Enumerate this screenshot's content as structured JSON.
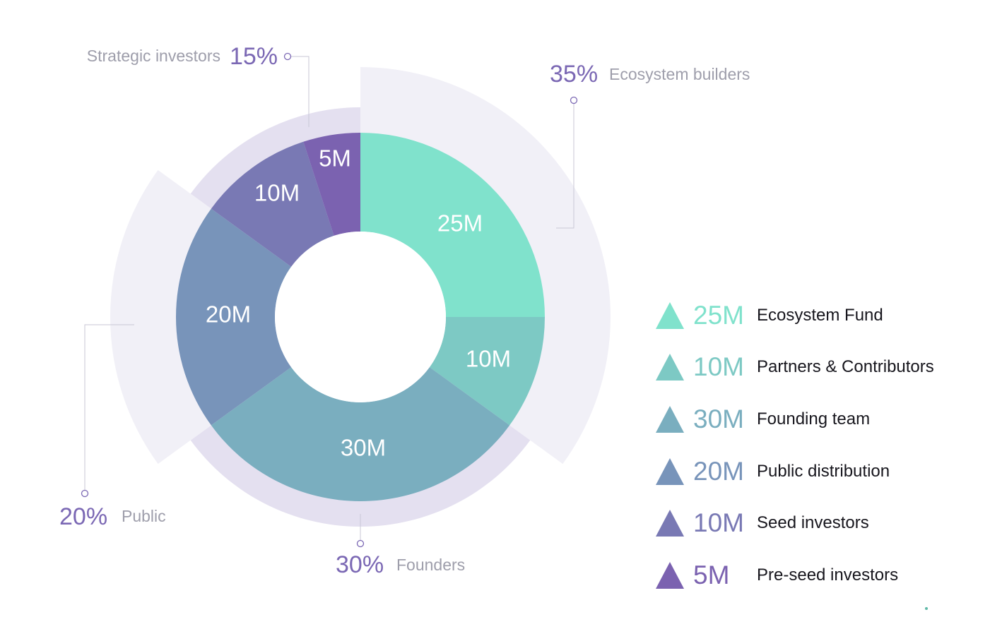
{
  "chart_data": {
    "type": "pie",
    "title": "",
    "slices": [
      {
        "name": "Ecosystem Fund",
        "value": 25,
        "label": "25M",
        "color": "#80e2cc"
      },
      {
        "name": "Partners & Contributors",
        "value": 10,
        "label": "10M",
        "color": "#7dc9c4"
      },
      {
        "name": "Founding team",
        "value": 30,
        "label": "30M",
        "color": "#7aaebf"
      },
      {
        "name": "Public distribution",
        "value": 20,
        "label": "20M",
        "color": "#7894ba"
      },
      {
        "name": "Seed investors",
        "value": 10,
        "label": "10M",
        "color": "#7979b4"
      },
      {
        "name": "Pre-seed investors",
        "value": 5,
        "label": "5M",
        "color": "#7b62b0"
      }
    ],
    "groups": [
      {
        "name": "Ecosystem builders",
        "percent": "35%",
        "slices": [
          0,
          1
        ]
      },
      {
        "name": "Founders",
        "percent": "30%",
        "slices": [
          2
        ]
      },
      {
        "name": "Public",
        "percent": "20%",
        "slices": [
          3
        ]
      },
      {
        "name": "Strategic investors",
        "percent": "15%",
        "slices": [
          4,
          5
        ]
      }
    ],
    "legend": {
      "position": "right",
      "items": [
        {
          "value": "25M",
          "label": "Ecosystem Fund",
          "color": "#80e2cc"
        },
        {
          "value": "10M",
          "label": "Partners & Contributors",
          "color": "#7dc9c4"
        },
        {
          "value": "30M",
          "label": "Founding team",
          "color": "#7aaebf"
        },
        {
          "value": "20M",
          "label": "Public distribution",
          "color": "#7894ba"
        },
        {
          "value": "10M",
          "label": "Seed investors",
          "color": "#7979b4"
        },
        {
          "value": "5M",
          "label": "Pre-seed investors",
          "color": "#7b62b0"
        }
      ]
    }
  },
  "colors": {
    "accent_purple": "#7b68b4",
    "group_band_light": "#f1f0f7",
    "group_band_medium": "#e4e0f0",
    "annotation_text": "#9e9eab",
    "leader_line": "#c9c7d6"
  }
}
